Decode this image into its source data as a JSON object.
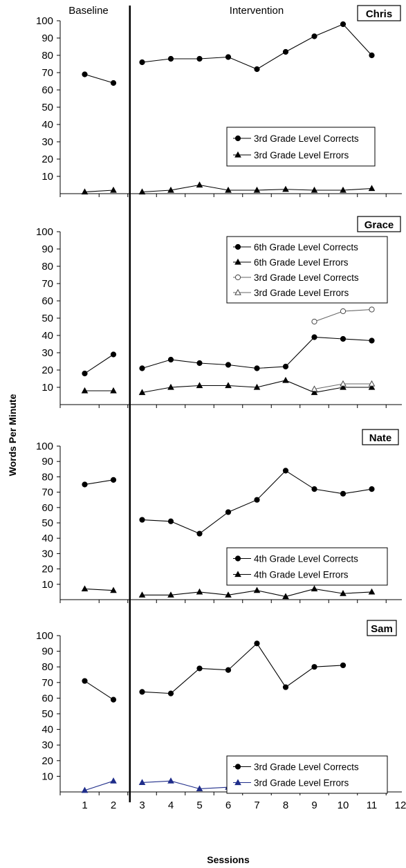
{
  "chart_data": {
    "type": "line",
    "xlabel": "Sessions",
    "ylabel": "Words Per Minute",
    "x_ticks": [
      1,
      2,
      3,
      4,
      5,
      6,
      7,
      8,
      9,
      10,
      11,
      12
    ],
    "ylim": [
      0,
      100
    ],
    "y_ticks": [
      10,
      20,
      30,
      40,
      50,
      60,
      70,
      80,
      90,
      100
    ],
    "phase_labels": {
      "baseline": "Baseline",
      "intervention": "Intervention"
    },
    "phase_change_after_session": 2.5,
    "panels": [
      {
        "name": "Chris",
        "series": [
          {
            "name": "3rd Grade Level Corrects",
            "marker": "circle-filled",
            "x": [
              1,
              2,
              3,
              4,
              5,
              6,
              7,
              8,
              9,
              10,
              11
            ],
            "y": [
              69,
              64,
              76,
              78,
              78,
              79,
              72,
              82,
              91,
              98,
              80
            ]
          },
          {
            "name": "3rd Grade Level Errors",
            "marker": "triangle-filled",
            "x": [
              1,
              2,
              3,
              4,
              5,
              6,
              7,
              8,
              9,
              10,
              11
            ],
            "y": [
              1,
              2,
              1,
              2,
              5,
              2,
              2,
              2.5,
              2,
              2,
              3
            ]
          }
        ]
      },
      {
        "name": "Grace",
        "series": [
          {
            "name": "6th Grade Level Corrects",
            "marker": "circle-filled",
            "x": [
              1,
              2,
              3,
              4,
              5,
              6,
              7,
              8,
              9,
              10,
              11
            ],
            "y": [
              18,
              29,
              21,
              26,
              24,
              23,
              21,
              22,
              39,
              38,
              37
            ]
          },
          {
            "name": "6th Grade Level Errors",
            "marker": "triangle-filled",
            "x": [
              1,
              2,
              3,
              4,
              5,
              6,
              7,
              8,
              9,
              10,
              11
            ],
            "y": [
              8,
              8,
              7,
              10,
              11,
              11,
              10,
              14,
              7,
              10,
              10
            ]
          },
          {
            "name": "3rd Grade Level Corrects",
            "marker": "circle-open",
            "x": [
              9,
              10,
              11
            ],
            "y": [
              48,
              54,
              55
            ]
          },
          {
            "name": "3rd Grade Level Errors",
            "marker": "triangle-open",
            "x": [
              9,
              10,
              11
            ],
            "y": [
              9,
              12,
              12
            ]
          }
        ]
      },
      {
        "name": "Nate",
        "series": [
          {
            "name": "4th Grade Level Corrects",
            "marker": "circle-filled",
            "x": [
              1,
              2,
              3,
              4,
              5,
              6,
              7,
              8,
              9,
              10,
              11
            ],
            "y": [
              75,
              78,
              52,
              51,
              43,
              57,
              65,
              84,
              72,
              69,
              72
            ]
          },
          {
            "name": "4th Grade Level Errors",
            "marker": "triangle-filled",
            "x": [
              1,
              2,
              3,
              4,
              5,
              6,
              7,
              8,
              9,
              10,
              11
            ],
            "y": [
              7,
              6,
              3,
              3,
              5,
              3,
              6,
              2,
              7,
              4,
              5
            ]
          }
        ]
      },
      {
        "name": "Sam",
        "series": [
          {
            "name": "3rd Grade Level Corrects",
            "marker": "circle-filled",
            "x": [
              1,
              2,
              3,
              4,
              5,
              6,
              7,
              8,
              9,
              10
            ],
            "y": [
              71,
              59,
              64,
              63,
              79,
              78,
              95,
              67,
              80,
              81
            ]
          },
          {
            "name": "3rd Grade Level Errors",
            "marker": "triangle-filled",
            "color": "#1f2d8a",
            "x": [
              1,
              2,
              3,
              4,
              5,
              6,
              7,
              8,
              9,
              10
            ],
            "y": [
              1,
              7,
              6,
              7,
              2,
              3,
              5,
              7,
              4,
              3
            ]
          }
        ]
      }
    ]
  }
}
